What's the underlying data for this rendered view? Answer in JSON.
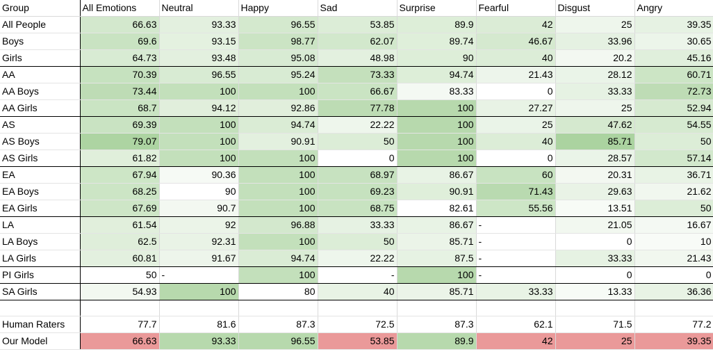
{
  "sheet": {
    "headers": [
      "Group",
      "All Emotions",
      "Neutral",
      "Happy",
      "Sad",
      "Surprise",
      "Fearful",
      "Disgust",
      "Angry"
    ],
    "rows": [
      {
        "cells": [
          "All People",
          "66.63",
          "93.33",
          "96.55",
          "53.85",
          "89.9",
          "42",
          "25",
          "39.35"
        ],
        "bg": [
          "#ffffff",
          "#d3e8cd",
          "#e3f0df",
          "#d4e9ce",
          "#dcedd7",
          "#ddeed8",
          "#dbecd6",
          "#eef6ec",
          "#e6f2e3"
        ]
      },
      {
        "cells": [
          "Boys",
          "69.6",
          "93.15",
          "98.77",
          "62.07",
          "89.74",
          "46.67",
          "33.96",
          "30.65"
        ],
        "bg": [
          "#ffffff",
          "#c9e3c2",
          "#e4f1e0",
          "#cbe4c4",
          "#d2e8cc",
          "#dfefda",
          "#d5e9cf",
          "#e5f1e2",
          "#ecf5ea"
        ]
      },
      {
        "cells": [
          "Girls",
          "64.73",
          "93.48",
          "95.08",
          "48.98",
          "90",
          "40",
          "20.2",
          "45.16"
        ],
        "bg": [
          "#ffffff",
          "#d8eb d3",
          "#e3f0df",
          "#d8ebd3",
          "#e3f0df",
          "#ddeed8",
          "#dcedd7",
          "#f3f8f1",
          "#e0efdc"
        ],
        "end": true
      },
      {
        "cells": [
          "AA",
          "70.39",
          "96.55",
          "95.24",
          "73.33",
          "94.74",
          "21.43",
          "28.12",
          "60.71"
        ],
        "bg": [
          "#ffffff",
          "#c6e2bf",
          "#d8ebd3",
          "#d8ebd3",
          "#c4e0bc",
          "#ddeed8",
          "#edf5eb",
          "#eaf4e8",
          "#cce5c5"
        ]
      },
      {
        "cells": [
          "AA Boys",
          "73.44",
          "100",
          "100",
          "66.67",
          "83.33",
          "0",
          "33.33",
          "72.73"
        ],
        "bg": [
          "#ffffff",
          "#bedcb5",
          "#c3e0bb",
          "#c3e0bb",
          "#cae4c3",
          "#f4f9f3",
          "#ffffff",
          "#e6f2e3",
          "#bedcb5"
        ]
      },
      {
        "cells": [
          "AA Girls",
          "68.7",
          "94.12",
          "92.86",
          "77.78",
          "100",
          "27.27",
          "25",
          "52.94"
        ],
        "bg": [
          "#ffffff",
          "#cae4c3",
          "#e1efdc",
          "#e1efdc",
          "#bddcb4",
          "#b7d9ad",
          "#e8f3e5",
          "#eef6ec",
          "#d6eAd0"
        ],
        "end": true
      },
      {
        "cells": [
          "AS",
          "69.39",
          "100",
          "94.74",
          "22.22",
          "100",
          "25",
          "47.62",
          "54.55"
        ],
        "bg": [
          "#ffffff",
          "#c9e3c2",
          "#c3e0bb",
          "#daecd5",
          "#eef6ec",
          "#b7d9ad",
          "#eaf4e8",
          "#d5e9cf",
          "#d6ead0"
        ]
      },
      {
        "cells": [
          "AS Boys",
          "79.07",
          "100",
          "90.91",
          "50",
          "100",
          "40",
          "85.71",
          "50"
        ],
        "bg": [
          "#ffffff",
          "#add4a2",
          "#c3e0bb",
          "#e3f0df",
          "#dcedd7",
          "#b7d9ad",
          "#dcedd7",
          "#abd3a0",
          "#dcedd7"
        ]
      },
      {
        "cells": [
          "AS Girls",
          "61.82",
          "100",
          "100",
          "0",
          "100",
          "0",
          "28.57",
          "57.14"
        ],
        "bg": [
          "#ffffff",
          "#e0efdb",
          "#c3e0bb",
          "#c3e0bb",
          "#ffffff",
          "#b7d9ad",
          "#ffffff",
          "#eaf4e8",
          "#d2e8cc"
        ],
        "end": true
      },
      {
        "cells": [
          "EA",
          "67.94",
          "90.36",
          "100",
          "68.97",
          "86.67",
          "60",
          "20.31",
          "36.71"
        ],
        "bg": [
          "#ffffff",
          "#cde6c6",
          "#f6faf5",
          "#c3e0bb",
          "#c7e2c0",
          "#e8f3e5",
          "#c8e3c1",
          "#f3f8f1",
          "#e8f3e5"
        ]
      },
      {
        "cells": [
          "EA Boys",
          "68.25",
          "90",
          "100",
          "69.23",
          "90.91",
          "71.43",
          "29.63",
          "21.62"
        ],
        "bg": [
          "#ffffff",
          "#cce5c5",
          "#ffffff",
          "#c3e0bb",
          "#c6e2bf",
          "#dfefda",
          "#b9dab0",
          "#e9f3e6",
          "#f1f7ef"
        ]
      },
      {
        "cells": [
          "EA Girls",
          "67.69",
          "90.7",
          "100",
          "68.75",
          "82.61",
          "55.56",
          "13.51",
          "50"
        ],
        "bg": [
          "#ffffff",
          "#cee6c7",
          "#f3f8f1",
          "#c3e0bb",
          "#c8e3c1",
          "#ffffff",
          "#cde6c6",
          "#f7fbf6",
          "#dcedd7"
        ],
        "end": true
      },
      {
        "cells": [
          "LA",
          "61.54",
          "92",
          "96.88",
          "33.33",
          "86.67",
          "-",
          "21.05",
          "16.67"
        ],
        "bg": [
          "#ffffff",
          "#e1efdc",
          "#ebf4e8",
          "#d3e8cd",
          "#e6f2e3",
          "#e8f3e5",
          "#ffffff",
          "#f2f8f0",
          "#f4f9f3"
        ]
      },
      {
        "cells": [
          "LA Boys",
          "62.5",
          "92.31",
          "100",
          "50",
          "85.71",
          "-",
          "0",
          "10"
        ],
        "bg": [
          "#ffffff",
          "#dfeeda",
          "#e9f3e6",
          "#c3e0bb",
          "#dcedd7",
          "#ebf4e8",
          "#ffffff",
          "#ffffff",
          "#f8fbf7"
        ]
      },
      {
        "cells": [
          "LA Girls",
          "60.81",
          "91.67",
          "94.74",
          "22.22",
          "87.5",
          "-",
          "33.33",
          "21.43"
        ],
        "bg": [
          "#ffffff",
          "#e3f0df",
          "#edf5eb",
          "#daecd5",
          "#eef6ec",
          "#e6f2e3",
          "#ffffff",
          "#e6f2e3",
          "#f1f7ef"
        ],
        "end": true
      },
      {
        "cells": [
          "PI Girls",
          "50",
          "-",
          "100",
          "-",
          "100",
          "-",
          "0",
          "0"
        ],
        "bg": [
          "#ffffff",
          "#ffffff",
          "#ffffff",
          "#c3e0bb",
          "#ffffff",
          "#b7d9ad",
          "#ffffff",
          "#ffffff",
          "#ffffff"
        ],
        "end": true
      },
      {
        "cells": [
          "SA Girls",
          "54.93",
          "100",
          "80",
          "40",
          "85.71",
          "33.33",
          "13.33",
          "36.36"
        ],
        "bg": [
          "#ffffff",
          "#f2f8f0",
          "#b7d9ad",
          "#ffffff",
          "#e8f3e5",
          "#ebf4e8",
          "#e8f3e5",
          "#f7fbf6",
          "#e8f3e5"
        ],
        "end": true
      }
    ],
    "human": {
      "cells": [
        "Human Raters",
        "77.7",
        "81.6",
        "87.3",
        "72.5",
        "87.3",
        "62.1",
        "71.5",
        "77.2"
      ]
    },
    "model": {
      "cells": [
        "Our Model",
        "66.63",
        "93.33",
        "96.55",
        "53.85",
        "89.9",
        "42",
        "25",
        "39.35"
      ],
      "bg": [
        "#ffffff",
        "#ea9999",
        "#b7d9ad",
        "#b7d9ad",
        "#ea9999",
        "#b7d9ad",
        "#ea9999",
        "#ea9999",
        "#ea9999"
      ]
    }
  }
}
